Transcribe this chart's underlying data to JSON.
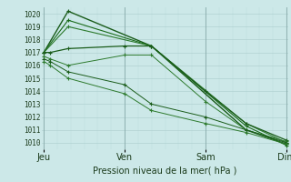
{
  "xlabel": "Pression niveau de la mer( hPa )",
  "bg_color": "#cce8e8",
  "grid_color_major": "#aacccc",
  "grid_color_minor": "#bbdddd",
  "line_colors": [
    "#1a5c1a",
    "#1a6b1a",
    "#2d7a2d",
    "#1a5c1a",
    "#2d7a2d",
    "#1a5c1a",
    "#2d7a2d"
  ],
  "line_widths": [
    1.0,
    0.8,
    0.8,
    0.9,
    0.7,
    0.7,
    0.7
  ],
  "ylim": [
    1009.5,
    1020.5
  ],
  "yticks": [
    1010,
    1011,
    1012,
    1013,
    1014,
    1015,
    1016,
    1017,
    1018,
    1019,
    1020
  ],
  "xtick_positions": [
    0,
    1,
    2,
    3
  ],
  "xticklabels": [
    "Jeu",
    "Ven",
    "Sam",
    "Dim"
  ],
  "series_x": [
    [
      0.0,
      0.3,
      1.33,
      2.5,
      3.0
    ],
    [
      0.0,
      0.3,
      1.33,
      2.5,
      3.0
    ],
    [
      0.0,
      0.3,
      1.33,
      2.5,
      3.0
    ],
    [
      0.0,
      0.08,
      0.3,
      1.0,
      1.33,
      2.0,
      2.5,
      3.0
    ],
    [
      0.0,
      0.08,
      0.3,
      1.0,
      1.33,
      2.0,
      2.5,
      3.0
    ],
    [
      0.0,
      0.08,
      0.3,
      1.0,
      1.33,
      2.0,
      2.5,
      3.0
    ],
    [
      0.0,
      0.08,
      0.3,
      1.0,
      1.33,
      2.0,
      2.5,
      3.0
    ]
  ],
  "series_y": [
    [
      1017.0,
      1020.2,
      1017.5,
      1011.0,
      1009.9
    ],
    [
      1017.0,
      1019.5,
      1017.5,
      1011.3,
      1009.8
    ],
    [
      1017.0,
      1019.0,
      1017.5,
      1011.5,
      1010.0
    ],
    [
      1017.0,
      1017.0,
      1017.3,
      1017.5,
      1017.5,
      1014.0,
      1011.5,
      1010.2
    ],
    [
      1016.7,
      1016.5,
      1016.0,
      1016.8,
      1016.8,
      1013.2,
      1011.0,
      1010.1
    ],
    [
      1016.5,
      1016.3,
      1015.5,
      1014.5,
      1013.0,
      1012.0,
      1011.0,
      1010.0
    ],
    [
      1016.3,
      1016.0,
      1015.0,
      1013.8,
      1012.5,
      1011.5,
      1010.8,
      1009.9
    ]
  ]
}
